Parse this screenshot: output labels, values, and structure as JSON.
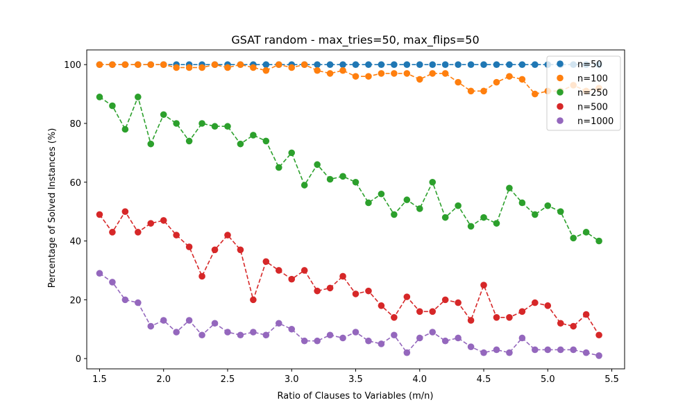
{
  "chart_data": {
    "type": "scatter",
    "title": "GSAT random - max_tries=50, max_flips=50",
    "xlabel": "Ratio of Clauses to Variables (m/n)",
    "ylabel": "Percentage of Solved Instances (%)",
    "xlim": [
      1.4,
      5.6
    ],
    "ylim": [
      -3.5,
      105
    ],
    "xticks": [
      "1.5",
      "2.0",
      "2.5",
      "3.0",
      "3.5",
      "4.0",
      "4.5",
      "5.0",
      "5.5"
    ],
    "yticks": [
      "0",
      "20",
      "40",
      "60",
      "80",
      "100"
    ],
    "legend_position": "top-right",
    "x": [
      1.5,
      1.6,
      1.7,
      1.8,
      1.9,
      2.0,
      2.1,
      2.2,
      2.3,
      2.4,
      2.5,
      2.6,
      2.7,
      2.8,
      2.9,
      3.0,
      3.1,
      3.2,
      3.3,
      3.4,
      3.5,
      3.6,
      3.7,
      3.8,
      3.9,
      4.0,
      4.1,
      4.2,
      4.3,
      4.4,
      4.5,
      4.6,
      4.7,
      4.8,
      4.9,
      5.0,
      5.1,
      5.2,
      5.3,
      5.4
    ],
    "series": [
      {
        "name": "n=50",
        "color": "#1f77b4",
        "values": [
          100,
          100,
          100,
          100,
          100,
          100,
          100,
          100,
          100,
          100,
          100,
          100,
          100,
          100,
          100,
          100,
          100,
          100,
          100,
          100,
          100,
          100,
          100,
          100,
          100,
          100,
          100,
          100,
          100,
          100,
          100,
          100,
          100,
          100,
          100,
          100,
          100,
          100,
          100,
          100
        ]
      },
      {
        "name": "n=100",
        "color": "#ff7f0e",
        "values": [
          100,
          100,
          100,
          100,
          100,
          100,
          99,
          99,
          99,
          100,
          99,
          100,
          99,
          98,
          100,
          99,
          100,
          98,
          97,
          98,
          96,
          96,
          97,
          97,
          97,
          95,
          97,
          97,
          94,
          91,
          91,
          94,
          96,
          95,
          90,
          91,
          91,
          93,
          91,
          92
        ]
      },
      {
        "name": "n=250",
        "color": "#2ca02c",
        "values": [
          89,
          86,
          78,
          89,
          73,
          83,
          80,
          74,
          80,
          79,
          79,
          73,
          76,
          74,
          65,
          70,
          59,
          66,
          61,
          62,
          60,
          53,
          56,
          49,
          54,
          51,
          60,
          48,
          52,
          45,
          48,
          46,
          58,
          53,
          49,
          52,
          50,
          41,
          43,
          40
        ]
      },
      {
        "name": "n=500",
        "color": "#d62728",
        "values": [
          49,
          43,
          50,
          43,
          46,
          47,
          42,
          38,
          28,
          37,
          42,
          37,
          20,
          33,
          30,
          27,
          30,
          23,
          24,
          28,
          22,
          23,
          18,
          14,
          21,
          16,
          16,
          20,
          19,
          13,
          25,
          14,
          14,
          16,
          19,
          18,
          12,
          11,
          15,
          8
        ]
      },
      {
        "name": "n=1000",
        "color": "#9467bd",
        "values": [
          29,
          26,
          20,
          19,
          11,
          13,
          9,
          13,
          8,
          12,
          9,
          8,
          9,
          8,
          12,
          10,
          6,
          6,
          8,
          7,
          9,
          6,
          5,
          8,
          2,
          7,
          9,
          6,
          7,
          4,
          2,
          3,
          2,
          7,
          3,
          3,
          3,
          3,
          2,
          1
        ]
      }
    ]
  }
}
